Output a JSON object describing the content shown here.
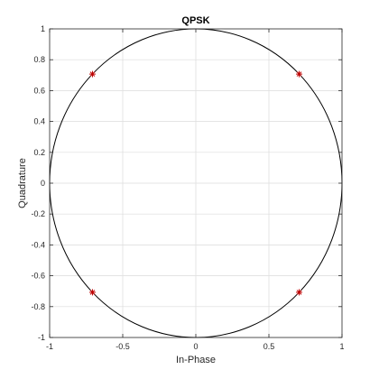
{
  "chart_data": {
    "type": "scatter",
    "title": "QPSK",
    "xlabel": "In-Phase",
    "ylabel": "Quadrature",
    "xlim": [
      -1,
      1
    ],
    "ylim": [
      -1,
      1
    ],
    "grid": true,
    "x_ticks": [
      -1,
      -0.5,
      0,
      0.5,
      1
    ],
    "x_tick_labels": [
      "-1",
      "-0.5",
      "0",
      "0.5",
      "1"
    ],
    "y_ticks": [
      -1,
      -0.8,
      -0.6,
      -0.4,
      -0.2,
      0,
      0.2,
      0.4,
      0.6,
      0.8,
      1
    ],
    "y_tick_labels": [
      "-1",
      "-0.8",
      "-0.6",
      "-0.4",
      "-0.2",
      "0",
      "0.2",
      "0.4",
      "0.6",
      "0.8",
      "1"
    ],
    "unit_circle": {
      "radius": 1,
      "color": "#000000"
    },
    "series": [
      {
        "marker": "asterisk",
        "color": "#c00000",
        "points": [
          {
            "x": -0.707,
            "y": 0.707
          },
          {
            "x": 0.707,
            "y": 0.707
          },
          {
            "x": -0.707,
            "y": -0.707
          },
          {
            "x": 0.707,
            "y": -0.707
          }
        ]
      }
    ],
    "colors": {
      "axes": "#262626",
      "grid": "#dcdcdc",
      "background": "#ffffff"
    }
  }
}
